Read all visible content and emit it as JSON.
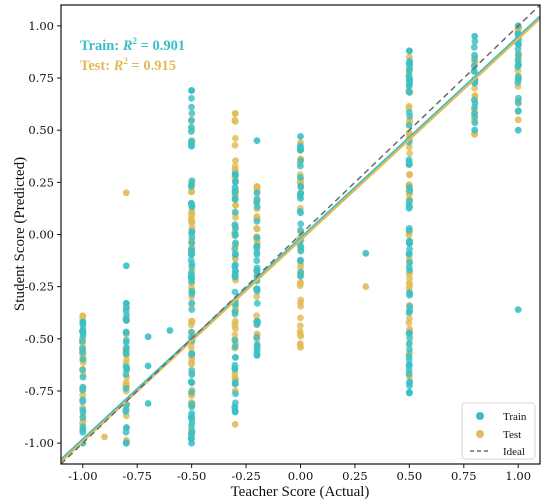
{
  "chart_data": {
    "type": "scatter",
    "xlabel": "Teacher Score (Actual)",
    "ylabel": "Student Score (Predicted)",
    "xlim": [
      -1.1,
      1.1
    ],
    "ylim": [
      -1.1,
      1.1
    ],
    "xticks": [
      "-1.00",
      "-0.75",
      "-0.50",
      "-0.25",
      "0.00",
      "0.25",
      "0.50",
      "0.75",
      "1.00"
    ],
    "yticks": [
      "-1.00",
      "-0.75",
      "-0.50",
      "-0.25",
      "0.00",
      "0.25",
      "0.50",
      "0.75",
      "1.00"
    ],
    "legend_position": "bottom-right",
    "annotations": [
      {
        "name": "Train",
        "r2": "0.901",
        "color": "#3bbfc6"
      },
      {
        "name": "Test",
        "r2": "0.915",
        "color": "#e3bb56"
      }
    ],
    "series": [
      {
        "name": "Train",
        "color": "#3bbfc6",
        "fit": {
          "slope": 0.965,
          "intercept": -0.017
        },
        "columns": [
          {
            "x": -1.0,
            "ymin": -1.0,
            "ymax": -0.42
          },
          {
            "x": -0.8,
            "ymin": -1.0,
            "ymax": -0.33
          },
          {
            "x": -0.5,
            "ymin": -1.0,
            "ymax": 0.69
          },
          {
            "x": -0.3,
            "ymin": -0.85,
            "ymax": 0.29
          },
          {
            "x": -0.2,
            "ymin": -0.58,
            "ymax": 0.2
          },
          {
            "x": 0.0,
            "ymin": -0.2,
            "ymax": 0.47
          },
          {
            "x": 0.5,
            "ymin": -0.76,
            "ymax": 0.88
          },
          {
            "x": 0.8,
            "ymin": 0.5,
            "ymax": 0.95
          },
          {
            "x": 1.0,
            "ymin": 0.5,
            "ymax": 1.0
          }
        ],
        "points": [
          [
            -0.8,
            -0.15
          ],
          [
            -0.7,
            -0.49
          ],
          [
            -0.7,
            -0.63
          ],
          [
            -0.7,
            -0.81
          ],
          [
            -0.6,
            -0.46
          ],
          [
            -0.2,
            0.45
          ],
          [
            0.3,
            -0.09
          ],
          [
            1.0,
            -0.36
          ],
          [
            -0.3,
            0.29
          ],
          [
            -0.5,
            0.69
          ],
          [
            -1.0,
            -0.42
          ],
          [
            -0.8,
            -0.33
          ],
          [
            0.5,
            0.88
          ],
          [
            -0.3,
            -0.85
          ]
        ]
      },
      {
        "name": "Test",
        "color": "#e3bb56",
        "fit": {
          "slope": 0.965,
          "intercept": -0.027
        },
        "columns": [
          {
            "x": -1.0,
            "ymin": -1.0,
            "ymax": -0.39
          },
          {
            "x": -0.8,
            "ymin": -1.0,
            "ymax": -0.35
          },
          {
            "x": -0.5,
            "ymin": -0.95,
            "ymax": 0.55
          },
          {
            "x": -0.3,
            "ymin": -0.75,
            "ymax": 0.58
          },
          {
            "x": -0.2,
            "ymin": -0.5,
            "ymax": 0.23
          },
          {
            "x": 0.0,
            "ymin": -0.54,
            "ymax": 0.44
          },
          {
            "x": 0.5,
            "ymin": -0.68,
            "ymax": 0.85
          },
          {
            "x": 0.8,
            "ymin": 0.48,
            "ymax": 0.85
          },
          {
            "x": 1.0,
            "ymin": 0.55,
            "ymax": 1.0
          }
        ],
        "points": [
          [
            -0.8,
            0.2
          ],
          [
            -0.9,
            -0.97
          ],
          [
            -0.3,
            -0.91
          ],
          [
            0.3,
            -0.25
          ],
          [
            -0.2,
            0.23
          ],
          [
            -0.3,
            0.58
          ],
          [
            -1.0,
            -0.39
          ]
        ]
      },
      {
        "name": "Ideal",
        "color": "#6b6b6b",
        "line": [
          [
            -1.1,
            -1.1
          ],
          [
            1.1,
            1.1
          ]
        ]
      }
    ]
  }
}
